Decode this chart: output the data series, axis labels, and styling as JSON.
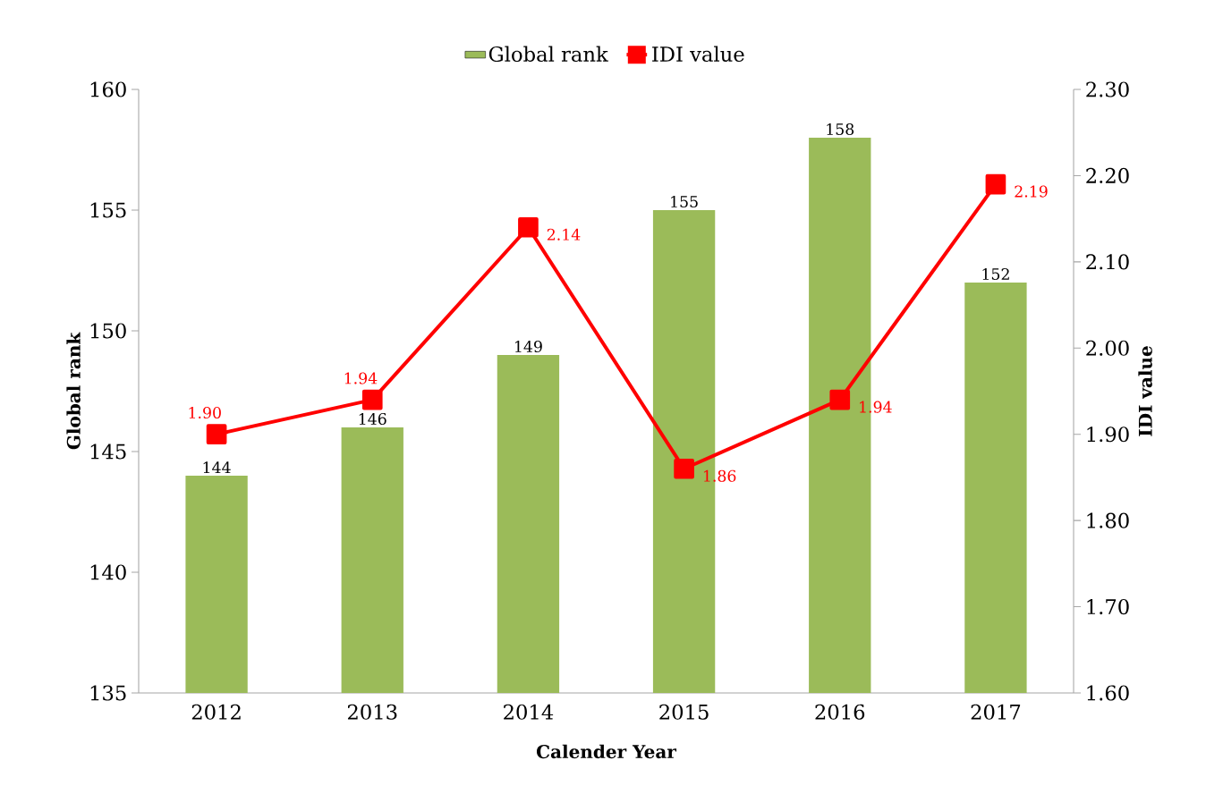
{
  "chart_data": {
    "type": "bar",
    "xlabel": "Calender Year",
    "ylabel": "Global rank",
    "y2label": "IDI value",
    "categories": [
      "2012",
      "2013",
      "2014",
      "2015",
      "2016",
      "2017"
    ],
    "series": [
      {
        "name": "Global rank",
        "color": "#9bbb59",
        "values": [
          144,
          146,
          149,
          155,
          158,
          152
        ],
        "value_labels": [
          "144",
          "146",
          "149",
          "155",
          "158",
          "152"
        ]
      },
      {
        "name": "IDI value",
        "type": "line",
        "axis": "y2",
        "color": "#ff0000",
        "marker": "square",
        "line_style": "solid",
        "values": [
          1.9,
          1.94,
          2.14,
          1.86,
          1.94,
          2.19
        ],
        "value_labels": [
          "1.90",
          "1.94",
          "2.14",
          "1.86",
          "1.94",
          "2.19"
        ]
      }
    ],
    "ylim": [
      135,
      160
    ],
    "yticks": [
      135,
      140,
      145,
      150,
      155,
      160
    ],
    "y2lim": [
      1.6,
      2.3
    ],
    "y2ticks": [
      {
        "value": 1.6,
        "label": "1.60"
      },
      {
        "value": 1.7,
        "label": "1.70"
      },
      {
        "value": 1.8,
        "label": "1.80"
      },
      {
        "value": 1.9,
        "label": "1.90"
      },
      {
        "value": 2.0,
        "label": "2.00"
      },
      {
        "value": 2.1,
        "label": "2.10"
      },
      {
        "value": 2.2,
        "label": "2.20"
      },
      {
        "value": 2.3,
        "label": "2.30"
      }
    ],
    "legend": "top"
  }
}
